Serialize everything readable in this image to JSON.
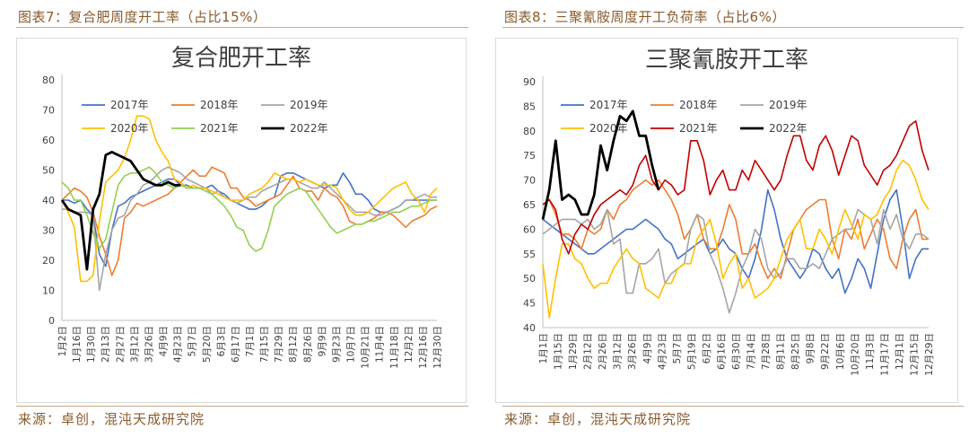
{
  "left": {
    "header": "图表7：复合肥周度开工率（占比15%）",
    "source": "来源：卓创，混沌天成研究院"
  },
  "right": {
    "header": "图表8：三聚氰胺周度开工负荷率（占比6%）",
    "source": "来源：卓创，混沌天成研究院"
  },
  "colors": {
    "2017年": "#4472c4",
    "2018年": "#ed7d31",
    "2019年": "#a5a5a5",
    "2020年": "#ffc000",
    "2021年": "#92d050",
    "2022年": "#000000",
    "2021年_melamine": "#c00000"
  },
  "chart_data": [
    {
      "type": "line",
      "title": "复合肥开工率",
      "xlabel": "",
      "ylabel": "",
      "ylim": [
        0,
        80
      ],
      "yticks": [
        0,
        10,
        20,
        30,
        40,
        50,
        60,
        70,
        80
      ],
      "grid": false,
      "legend_position": "top",
      "x_tick_labels": [
        "1月2日",
        "1月16日",
        "1月30日",
        "2月13日",
        "2月27日",
        "3月12日",
        "3月26日",
        "4月9日",
        "4月23日",
        "5月7日",
        "5月20日",
        "6月3日",
        "6月17日",
        "7月1日",
        "7月15日",
        "7月29日",
        "8月12日",
        "8月26日",
        "9月9日",
        "9月23日",
        "10月7日",
        "10月21日",
        "11月4日",
        "11月18日",
        "12月2日",
        "12月16日",
        "12月30日"
      ],
      "series": [
        {
          "name": "2017年",
          "color": "#4472c4",
          "values": [
            40,
            40,
            39,
            40,
            37,
            35,
            22,
            18,
            30,
            38,
            39,
            41,
            42,
            43,
            44,
            45,
            46,
            47,
            47,
            45,
            45,
            44,
            44,
            44,
            45,
            43,
            42,
            40,
            39,
            38,
            37,
            37,
            38,
            40,
            41,
            48,
            49,
            49,
            48,
            47,
            46,
            45,
            44,
            45,
            45,
            49,
            46,
            42,
            42,
            40,
            37,
            36,
            36,
            37,
            38,
            40,
            40,
            40,
            40,
            40,
            40
          ]
        },
        {
          "name": "2018年",
          "color": "#ed7d31",
          "values": [
            40,
            42,
            44,
            43,
            41,
            36,
            28,
            22,
            15,
            20,
            34,
            36,
            39,
            38,
            39,
            40,
            41,
            42,
            44,
            46,
            48,
            50,
            48,
            48,
            51,
            50,
            49,
            44,
            44,
            41,
            40,
            38,
            39,
            40,
            41,
            42,
            45,
            48,
            44,
            43,
            43,
            40,
            44,
            42,
            41,
            38,
            33,
            32,
            32,
            33,
            34,
            36,
            36,
            35,
            33,
            31,
            33,
            34,
            35,
            37,
            38
          ]
        },
        {
          "name": "2019年",
          "color": "#a5a5a5",
          "values": [
            37,
            37,
            36,
            36,
            36,
            35,
            10,
            22,
            30,
            34,
            35,
            40,
            42,
            45,
            46,
            48,
            50,
            51,
            50,
            49,
            47,
            46,
            45,
            44,
            42,
            43,
            41,
            40,
            39,
            40,
            41,
            41,
            43,
            44,
            45,
            46,
            47,
            47,
            46,
            45,
            44,
            44,
            46,
            44,
            42,
            40,
            38,
            36,
            36,
            36,
            35,
            35,
            36,
            37,
            38,
            40,
            40,
            41,
            42,
            41,
            41
          ]
        },
        {
          "name": "2020年",
          "color": "#ffc000",
          "values": [
            40,
            36,
            31,
            13,
            13,
            15,
            33,
            46,
            48,
            50,
            54,
            60,
            68,
            68,
            67,
            60,
            56,
            53,
            47,
            46,
            44,
            45,
            44,
            44,
            43,
            42,
            41,
            40,
            40,
            40,
            42,
            43,
            44,
            46,
            49,
            48,
            47,
            47,
            46,
            47,
            46,
            45,
            45,
            45,
            44,
            40,
            37,
            35,
            35,
            36,
            38,
            40,
            42,
            44,
            45,
            46,
            42,
            40,
            36,
            42,
            44
          ]
        },
        {
          "name": "2021年",
          "color": "#92d050",
          "values": [
            46,
            44,
            40,
            40,
            35,
            29,
            24,
            27,
            36,
            45,
            48,
            49,
            49,
            50,
            51,
            49,
            46,
            45,
            44,
            45,
            44,
            44,
            44,
            43,
            42,
            40,
            38,
            35,
            31,
            30,
            25,
            23,
            24,
            30,
            38,
            40,
            42,
            43,
            44,
            43,
            40,
            37,
            34,
            31,
            29,
            30,
            31,
            32,
            32,
            33,
            33,
            34,
            35,
            36,
            36,
            37,
            38,
            38,
            39,
            40,
            40
          ]
        },
        {
          "name": "2022年",
          "color": "#000000",
          "values": [
            40,
            37,
            36,
            35,
            17,
            37,
            42,
            55,
            56,
            55,
            54,
            53,
            50,
            47,
            46,
            45,
            45,
            46,
            45,
            45,
            null,
            null,
            null,
            null,
            null,
            null,
            null,
            null,
            null,
            null,
            null,
            null,
            null,
            null,
            null,
            null,
            null,
            null,
            null,
            null,
            null,
            null,
            null,
            null,
            null,
            null,
            null,
            null,
            null,
            null,
            null,
            null,
            null,
            null,
            null,
            null,
            null,
            null,
            null,
            null,
            null
          ]
        }
      ]
    },
    {
      "type": "line",
      "title": "三聚氰胺开工率",
      "xlabel": "",
      "ylabel": "",
      "ylim": [
        40,
        90
      ],
      "yticks": [
        40,
        45,
        50,
        55,
        60,
        65,
        70,
        75,
        80,
        85,
        90
      ],
      "grid": false,
      "legend_position": "top",
      "x_tick_labels": [
        "1月1日",
        "1月15日",
        "1月29日",
        "2月12日",
        "2月26日",
        "3月12日",
        "3月26日",
        "4月9日",
        "4月23日",
        "5月7日",
        "5月19日",
        "6月2日",
        "6月16日",
        "6月30日",
        "7月14日",
        "7月28日",
        "8月11日",
        "8月25日",
        "9月8日",
        "9月22日",
        "10月6日",
        "10月20日",
        "11月3日",
        "11月17日",
        "12月1日",
        "12月15日",
        "12月29日"
      ],
      "series": [
        {
          "name": "2017年",
          "color": "#4472c4",
          "values": [
            62,
            61,
            60,
            59,
            58,
            57,
            56,
            55,
            55,
            56,
            57,
            58,
            59,
            60,
            60,
            61,
            62,
            61,
            60,
            58,
            57,
            54,
            55,
            56,
            57,
            58,
            55,
            56,
            58,
            56,
            55,
            52,
            50,
            54,
            60,
            68,
            64,
            58,
            54,
            52,
            50,
            52,
            56,
            55,
            52,
            50,
            52,
            47,
            50,
            54,
            52,
            48,
            55,
            62,
            66,
            68,
            60,
            50,
            54,
            56,
            56
          ]
        },
        {
          "name": "2018年",
          "color": "#ed7d31",
          "values": [
            65,
            66,
            63,
            59,
            59,
            58,
            56,
            60,
            59,
            60,
            64,
            62,
            65,
            66,
            68,
            69,
            70,
            69,
            70,
            68,
            66,
            63,
            58,
            60,
            63,
            58,
            56,
            56,
            60,
            65,
            62,
            55,
            55,
            57,
            53,
            50,
            52,
            50,
            55,
            60,
            62,
            64,
            65,
            66,
            66,
            58,
            54,
            60,
            58,
            62,
            56,
            59,
            62,
            60,
            54,
            52,
            58,
            62,
            64,
            58,
            58
          ]
        },
        {
          "name": "2019年",
          "color": "#a5a5a5",
          "values": [
            59,
            60,
            61,
            62,
            62,
            62,
            61,
            62,
            60,
            61,
            64,
            57,
            58,
            47,
            47,
            53,
            53,
            54,
            56,
            49,
            51,
            52,
            53,
            60,
            63,
            62,
            55,
            52,
            48,
            43,
            47,
            52,
            55,
            60,
            58,
            52,
            50,
            51,
            54,
            54,
            52,
            52,
            53,
            52,
            55,
            58,
            59,
            60,
            60,
            64,
            63,
            62,
            57,
            64,
            60,
            63,
            58,
            56,
            59,
            59,
            58
          ]
        },
        {
          "name": "2020年",
          "color": "#ffc000",
          "values": [
            53,
            42,
            50,
            57,
            57,
            54,
            53,
            50,
            48,
            49,
            49,
            52,
            54,
            56,
            54,
            53,
            48,
            47,
            46,
            49,
            49,
            52,
            53,
            53,
            58,
            60,
            62,
            57,
            50,
            53,
            55,
            48,
            50,
            46,
            47,
            48,
            50,
            54,
            58,
            60,
            62,
            56,
            56,
            60,
            58,
            55,
            60,
            64,
            61,
            58,
            63,
            62,
            63,
            66,
            68,
            72,
            74,
            73,
            70,
            66,
            64
          ]
        },
        {
          "name": "2021年",
          "color": "#c00000",
          "values": [
            65,
            66,
            64,
            58,
            55,
            59,
            61,
            60,
            63,
            65,
            66,
            67,
            68,
            67,
            69,
            73,
            75,
            70,
            68,
            70,
            69,
            67,
            68,
            78,
            78,
            74,
            67,
            70,
            72,
            68,
            68,
            72,
            70,
            74,
            72,
            70,
            68,
            70,
            75,
            79,
            79,
            74,
            72,
            77,
            79,
            76,
            71,
            75,
            79,
            78,
            73,
            71,
            69,
            72,
            73,
            75,
            78,
            81,
            82,
            76,
            72
          ]
        },
        {
          "name": "2022年",
          "color": "#000000",
          "values": [
            62,
            68,
            78,
            66,
            67,
            66,
            63,
            63,
            67,
            77,
            72,
            78,
            83,
            82,
            84,
            79,
            79,
            73,
            68,
            null,
            null,
            null,
            null,
            null,
            null,
            null,
            null,
            null,
            null,
            null,
            null,
            null,
            null,
            null,
            null,
            null,
            null,
            null,
            null,
            null,
            null,
            null,
            null,
            null,
            null,
            null,
            null,
            null,
            null,
            null,
            null,
            null,
            null,
            null,
            null,
            null,
            null,
            null,
            null,
            null,
            null
          ]
        }
      ]
    }
  ]
}
